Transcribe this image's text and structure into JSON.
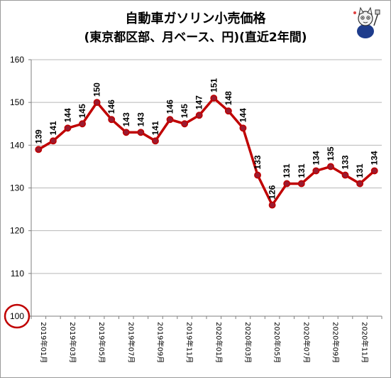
{
  "title_line1": "自動車ガソリン小売価格",
  "title_line2": "(東京都区部、月ベース、円)(直近2年間)",
  "colors": {
    "line": "#c00000",
    "marker_fill": "#9b1b30",
    "marker_stroke": "#c00000",
    "grid": "#b8b8b8",
    "axis": "#7f7f7f",
    "highlight_circle": "#c00000"
  },
  "mascot_icon": "cat-mascot-icon",
  "chart_data": {
    "type": "line",
    "title": "自動車ガソリン小売価格",
    "subtitle": "(東京都区部、月ベース、円)(直近2年間)",
    "xlabel": "",
    "ylabel": "",
    "ylim": [
      100,
      160
    ],
    "yticks": [
      100,
      110,
      120,
      130,
      140,
      150,
      160
    ],
    "grid": true,
    "legend": "none",
    "x": [
      "2019年01月",
      "2019年02月",
      "2019年03月",
      "2019年04月",
      "2019年05月",
      "2019年06月",
      "2019年07月",
      "2019年08月",
      "2019年09月",
      "2019年10月",
      "2019年11月",
      "2019年12月",
      "2020年01月",
      "2020年02月",
      "2020年03月",
      "2020年04月",
      "2020年05月",
      "2020年06月",
      "2020年07月",
      "2020年08月",
      "2020年09月",
      "2020年10月",
      "2020年11月",
      "2020年12月"
    ],
    "x_tick_labels": [
      "2019年01月",
      "2019年03月",
      "2019年05月",
      "2019年07月",
      "2019年09月",
      "2019年11月",
      "2020年01月",
      "2020年03月",
      "2020年05月",
      "2020年07月",
      "2020年09月",
      "2020年11月"
    ],
    "series": [
      {
        "values": [
          139,
          141,
          144,
          145,
          150,
          146,
          143,
          143,
          141,
          146,
          145,
          147,
          151,
          148,
          144,
          133,
          126,
          131,
          131,
          134,
          135,
          133,
          131,
          134
        ]
      }
    ],
    "highlighted_tick": 100
  }
}
